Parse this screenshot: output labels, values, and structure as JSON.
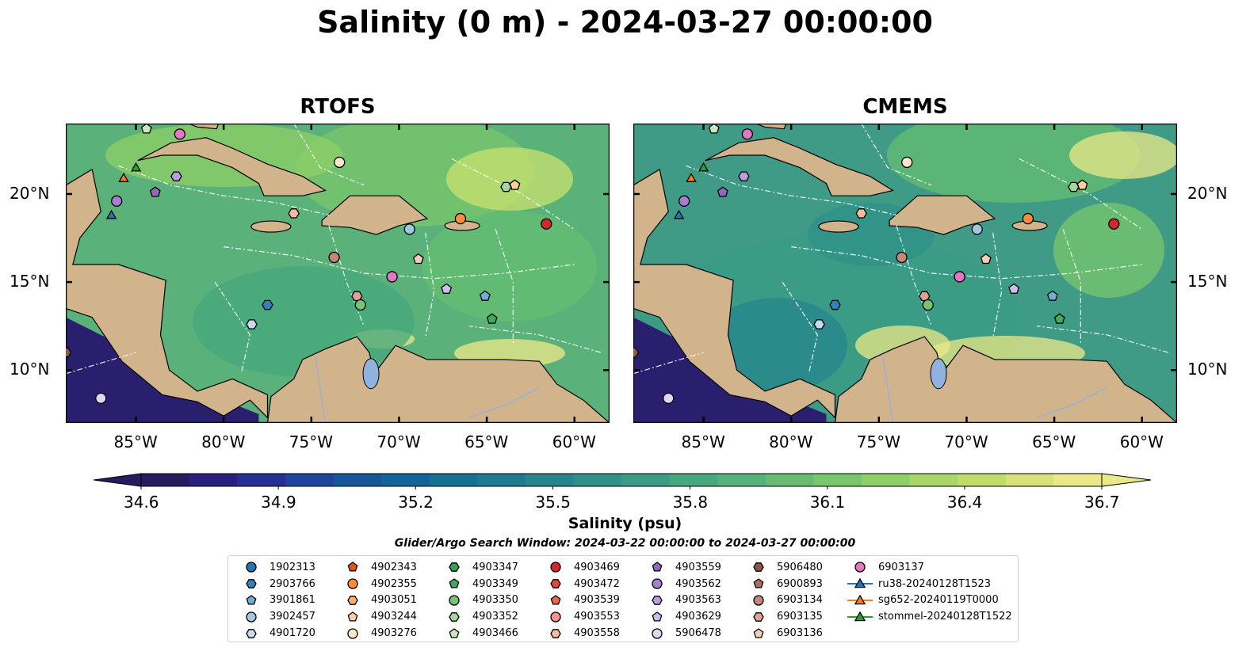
{
  "title": "Salinity (0 m) - 2024-03-27 00:00:00",
  "panels": [
    {
      "title": "RTOFS"
    },
    {
      "title": "CMEMS"
    }
  ],
  "lon_ticks": [
    "85°W",
    "80°W",
    "75°W",
    "70°W",
    "65°W",
    "60°W"
  ],
  "lat_ticks": [
    "20°N",
    "15°N",
    "10°N"
  ],
  "colorbar": {
    "ticks": [
      "34.6",
      "34.9",
      "35.2",
      "35.5",
      "35.8",
      "36.1",
      "36.4",
      "36.7"
    ],
    "label": "Salinity (psu)",
    "colors": [
      "#281c5f",
      "#2a1f7f",
      "#262f96",
      "#1f449c",
      "#16579b",
      "#126599",
      "#157193",
      "#1e7b8f",
      "#27858c",
      "#2f9188",
      "#3a9c84",
      "#47a77e",
      "#55b27a",
      "#66bd72",
      "#79c76c",
      "#8fcf67",
      "#a8d767",
      "#c0dd6b",
      "#d7e378",
      "#ebe887"
    ],
    "extend": "both"
  },
  "search_window": "Glider/Argo Search Window: 2024-03-22 00:00:00 to 2024-03-27 00:00:00",
  "legend": [
    {
      "label": "1902313",
      "shape": "circle",
      "color": "#1f77b4"
    },
    {
      "label": "2903766",
      "shape": "hexagon",
      "color": "#3182bd"
    },
    {
      "label": "3901861",
      "shape": "pentagon",
      "color": "#6baed6"
    },
    {
      "label": "3902457",
      "shape": "circle",
      "color": "#9ecae1"
    },
    {
      "label": "4901720",
      "shape": "hexagon",
      "color": "#c6dbef"
    },
    {
      "label": "4902343",
      "shape": "pentagon",
      "color": "#e6550d"
    },
    {
      "label": "4902355",
      "shape": "circle",
      "color": "#fd8d3c"
    },
    {
      "label": "4903051",
      "shape": "hexagon",
      "color": "#fdae6b"
    },
    {
      "label": "4903244",
      "shape": "pentagon",
      "color": "#fdd0a2"
    },
    {
      "label": "4903276",
      "shape": "circle",
      "color": "#fee6ce"
    },
    {
      "label": "4903347",
      "shape": "hexagon",
      "color": "#31a354"
    },
    {
      "label": "4903349",
      "shape": "pentagon",
      "color": "#41ab5d"
    },
    {
      "label": "4903350",
      "shape": "circle",
      "color": "#74c476"
    },
    {
      "label": "4903352",
      "shape": "hexagon",
      "color": "#a1d99b"
    },
    {
      "label": "4903466",
      "shape": "pentagon",
      "color": "#c7e9c0"
    },
    {
      "label": "4903469",
      "shape": "circle",
      "color": "#d62728"
    },
    {
      "label": "4903472",
      "shape": "hexagon",
      "color": "#e34a33"
    },
    {
      "label": "4903539",
      "shape": "pentagon",
      "color": "#ef6548"
    },
    {
      "label": "4903553",
      "shape": "circle",
      "color": "#f1948a"
    },
    {
      "label": "4903558",
      "shape": "hexagon",
      "color": "#fcbba1"
    },
    {
      "label": "4903559",
      "shape": "pentagon",
      "color": "#9467bd"
    },
    {
      "label": "4903562",
      "shape": "circle",
      "color": "#a57fcd"
    },
    {
      "label": "4903563",
      "shape": "hexagon",
      "color": "#bc9ee0"
    },
    {
      "label": "4903629",
      "shape": "pentagon",
      "color": "#d0bdf0"
    },
    {
      "label": "5906478",
      "shape": "circle",
      "color": "#e2d6f6"
    },
    {
      "label": "5906480",
      "shape": "hexagon",
      "color": "#8c564b"
    },
    {
      "label": "6900893",
      "shape": "pentagon",
      "color": "#a6735f"
    },
    {
      "label": "6903134",
      "shape": "circle",
      "color": "#c4877a"
    },
    {
      "label": "6903135",
      "shape": "hexagon",
      "color": "#e0a393"
    },
    {
      "label": "6903136",
      "shape": "pentagon",
      "color": "#f6cdb8"
    },
    {
      "label": "6903137",
      "shape": "circle",
      "color": "#e377c2"
    },
    {
      "label": "ru38-20240128T1523",
      "shape": "triangle-line",
      "color": "#1f77b4"
    },
    {
      "label": "sg652-20240119T0000",
      "shape": "triangle-line",
      "color": "#ff7f0e"
    },
    {
      "label": "stommel-20240128T1522",
      "shape": "triangle-line",
      "color": "#2ca02c"
    }
  ],
  "markers": [
    {
      "label": "6903137",
      "lon": -82.5,
      "lat": 23.4
    },
    {
      "label": "4903466",
      "lon": -84.4,
      "lat": 23.7
    },
    {
      "label": "stommel-20240128T1522",
      "lon": -85.0,
      "lat": 21.5
    },
    {
      "label": "sg652-20240119T0000",
      "lon": -85.7,
      "lat": 20.9
    },
    {
      "label": "4903563",
      "lon": -82.7,
      "lat": 21.0
    },
    {
      "label": "4903559",
      "lon": -83.9,
      "lat": 20.1
    },
    {
      "label": "4903562",
      "lon": -86.1,
      "lat": 19.6
    },
    {
      "label": "ru38-20240128T1523",
      "lon": -86.4,
      "lat": 18.8
    },
    {
      "label": "4903276",
      "lon": -73.4,
      "lat": 21.8
    },
    {
      "label": "4903558",
      "lon": -76.0,
      "lat": 18.9
    },
    {
      "label": "4903244",
      "lon": -63.4,
      "lat": 20.5
    },
    {
      "label": "4903352",
      "lon": -63.9,
      "lat": 20.4
    },
    {
      "label": "4902355",
      "lon": -66.5,
      "lat": 18.6
    },
    {
      "label": "4903469",
      "lon": -61.6,
      "lat": 18.3
    },
    {
      "label": "3902457",
      "lon": -69.4,
      "lat": 18.0
    },
    {
      "label": "6903134",
      "lon": -73.7,
      "lat": 16.4
    },
    {
      "label": "6903136",
      "lon": -68.9,
      "lat": 16.3
    },
    {
      "label": "6903137",
      "lon": -70.4,
      "lat": 15.3
    },
    {
      "label": "4903629",
      "lon": -67.3,
      "lat": 14.6
    },
    {
      "label": "3901861",
      "lon": -65.1,
      "lat": 14.2
    },
    {
      "label": "6903135",
      "lon": -72.4,
      "lat": 14.2
    },
    {
      "label": "4903350",
      "lon": -72.2,
      "lat": 13.7
    },
    {
      "label": "2903766",
      "lon": -77.5,
      "lat": 13.7
    },
    {
      "label": "4903349",
      "lon": -64.7,
      "lat": 12.9
    },
    {
      "label": "4901720",
      "lon": -78.4,
      "lat": 12.6
    },
    {
      "label": "5906480",
      "lon": -89.0,
      "lat": 11.0
    },
    {
      "label": "5906478",
      "lon": -87.0,
      "lat": 8.4
    }
  ]
}
